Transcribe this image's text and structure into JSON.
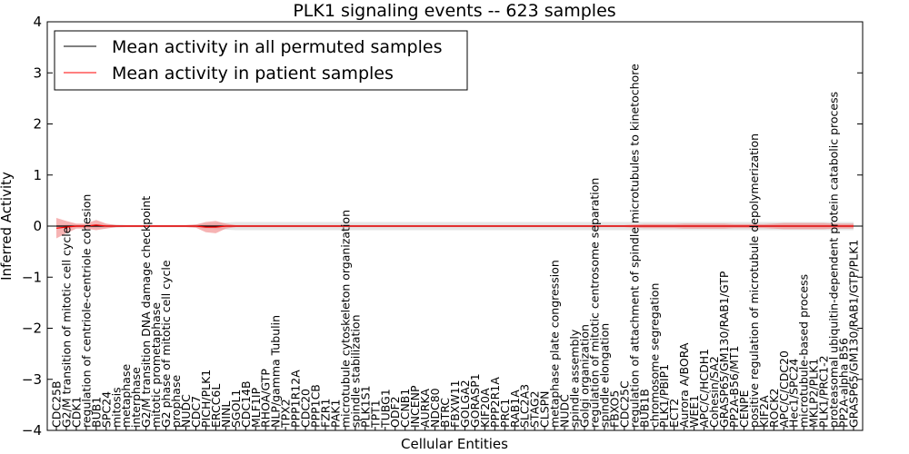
{
  "chart_data": {
    "type": "line",
    "title": "PLK1 signaling events -- 623 samples",
    "xlabel": "Cellular Entities",
    "ylabel": "Inferred Activity",
    "ylim": [
      -4,
      4
    ],
    "yticks": [
      -4,
      -3,
      -2,
      -1,
      0,
      1,
      2,
      3,
      4
    ],
    "legend_position": "top-left",
    "colors": {
      "permuted": "#000000",
      "patient": "#ff0000",
      "band_permuted": "#d3d3d3",
      "band_patient": "#f08080"
    },
    "categories": [
      "CDC25B",
      "G2/M transition of mitotic cell cycle",
      "CDK1",
      "regulation of centriole-centriole cohesion",
      "BUB1",
      "SPC24",
      "mitosis",
      "metaphase",
      "interphase",
      "G2/M transition DNA damage checkpoint",
      "mitotic prometaphase",
      "G2 phase of mitotic cell cycle",
      "prophase",
      "NUDC",
      "CDC7",
      "PICH/PLK1",
      "ERCC6L",
      "NINL",
      "SGOL1",
      "CDC14B",
      "MLF1IP",
      "RHOA/GTP",
      "NLP/gamma Tubulin",
      "TPX2",
      "PPP1R12A",
      "CDC20",
      "PPP1CB",
      "FZR1",
      "PAK1",
      "microtubule cytoskeleton organization",
      "spindle stabilization",
      "PLK1S1",
      "TPT1",
      "TUBG1",
      "ODF2",
      "CCNB1",
      "INCENP",
      "AURKA",
      "NDC80",
      "BTRC",
      "FBXW11",
      "GOLGA2",
      "GORASP1",
      "KIF20A",
      "PPP2R1A",
      "PRC1",
      "RAB1A",
      "SLC2A3",
      "STAG2",
      "CLSPN",
      "metaphase plate congression",
      "NUDC",
      "spindle assembly",
      "Golgi organization",
      "regulation of mitotic centrosome separation",
      "spindle elongation",
      "FBXO5",
      "CDC25C",
      "regulation of attachment of spindle microtubules to kinetochore",
      "BUB1B",
      "chromosome segregation",
      "PLK1/PBIP1",
      "ECT2",
      "Aurora A/BORA",
      "WEE1",
      "APC/C/HCDH1",
      "Cohesin/SA2",
      "GRASP65/GM130/RAB1/GTP",
      "PP2A-B56/MT1",
      "CENPE",
      "positive regulation of microtubule depolymerization",
      "KIF2A",
      "ROCK2",
      "APC/C/CDC20",
      "Hec1/SPC24",
      "microtubule-based process",
      "MKLP2/PLK1",
      "PLK1/PRC1-2",
      "proteasomal ubiquitin-dependent protein catabolic process",
      "PP2A-alpha B56",
      "GRASP65/GM130/RAB1/GTP/PLK1"
    ],
    "series": [
      {
        "name": "Mean activity in all permuted samples",
        "color": "#000000",
        "values": [
          0,
          0,
          0,
          0,
          0,
          0,
          0,
          0,
          0,
          0,
          0,
          0,
          0,
          0,
          0,
          0,
          0,
          0,
          0,
          0,
          0,
          0,
          0,
          0,
          0,
          0,
          0,
          0,
          0,
          0,
          0,
          0,
          0,
          0,
          0,
          0,
          0,
          0,
          0,
          0,
          0,
          0,
          0,
          0,
          0,
          0,
          0,
          0,
          0,
          0,
          0,
          0,
          0,
          0,
          0,
          0,
          0,
          0,
          0,
          0,
          0,
          0,
          0,
          0,
          0,
          0,
          0,
          0,
          0,
          0,
          0,
          0,
          0,
          0,
          0,
          0,
          0,
          0,
          0,
          0,
          0
        ],
        "spread": [
          0.02,
          0.03,
          0.03,
          0.03,
          0.04,
          0.04,
          0.03,
          0.02,
          0.02,
          0.02,
          0.02,
          0.02,
          0.02,
          0.02,
          0.03,
          0.05,
          0.06,
          0.07,
          0.08,
          0.08,
          0.08,
          0.08,
          0.08,
          0.08,
          0.08,
          0.08,
          0.08,
          0.08,
          0.08,
          0.08,
          0.08,
          0.08,
          0.08,
          0.08,
          0.08,
          0.08,
          0.08,
          0.08,
          0.08,
          0.08,
          0.08,
          0.08,
          0.08,
          0.08,
          0.08,
          0.08,
          0.08,
          0.08,
          0.08,
          0.08,
          0.08,
          0.08,
          0.08,
          0.08,
          0.08,
          0.08,
          0.08,
          0.08,
          0.08,
          0.08,
          0.08,
          0.08,
          0.08,
          0.08,
          0.08,
          0.08,
          0.08,
          0.08,
          0.08,
          0.08,
          0.08,
          0.08,
          0.08,
          0.08,
          0.08,
          0.08,
          0.08,
          0.08,
          0.08,
          0.08,
          0.08
        ]
      },
      {
        "name": "Mean activity in patient samples",
        "color": "#ff0000",
        "values": [
          -0.04,
          -0.02,
          0,
          0,
          0.02,
          0,
          0,
          0,
          0,
          0,
          0,
          0,
          0,
          0,
          0,
          -0.02,
          -0.02,
          0,
          0,
          0,
          0,
          0,
          0,
          0,
          0,
          0,
          0,
          0,
          0,
          0,
          0,
          0,
          0,
          0,
          0,
          0,
          0,
          0,
          0,
          0,
          0,
          0,
          0,
          0,
          0,
          0,
          0,
          0,
          0,
          0,
          0,
          0,
          0,
          0,
          0,
          0,
          0,
          0,
          0,
          0,
          0,
          0,
          0,
          0,
          0,
          0,
          0,
          0,
          0,
          0,
          0,
          0,
          0,
          0,
          0,
          0,
          0,
          0,
          0,
          0,
          0
        ],
        "spread": [
          0.2,
          0.12,
          0.05,
          0.05,
          0.1,
          0.05,
          0.02,
          0.02,
          0.02,
          0.02,
          0.02,
          0.02,
          0.02,
          0.02,
          0.03,
          0.1,
          0.12,
          0.05,
          0.02,
          0.02,
          0.02,
          0.02,
          0.02,
          0.02,
          0.02,
          0.02,
          0.02,
          0.02,
          0.02,
          0.02,
          0.02,
          0.02,
          0.02,
          0.02,
          0.02,
          0.02,
          0.02,
          0.02,
          0.02,
          0.02,
          0.02,
          0.02,
          0.02,
          0.02,
          0.02,
          0.02,
          0.02,
          0.02,
          0.02,
          0.02,
          0.02,
          0.02,
          0.02,
          0.02,
          0.02,
          0.02,
          0.02,
          0.02,
          0.03,
          0.04,
          0.04,
          0.04,
          0.04,
          0.05,
          0.05,
          0.05,
          0.05,
          0.05,
          0.04,
          0.04,
          0.04,
          0.04,
          0.05,
          0.06,
          0.06,
          0.06,
          0.06,
          0.06,
          0.05,
          0.05,
          0.05
        ]
      }
    ]
  }
}
